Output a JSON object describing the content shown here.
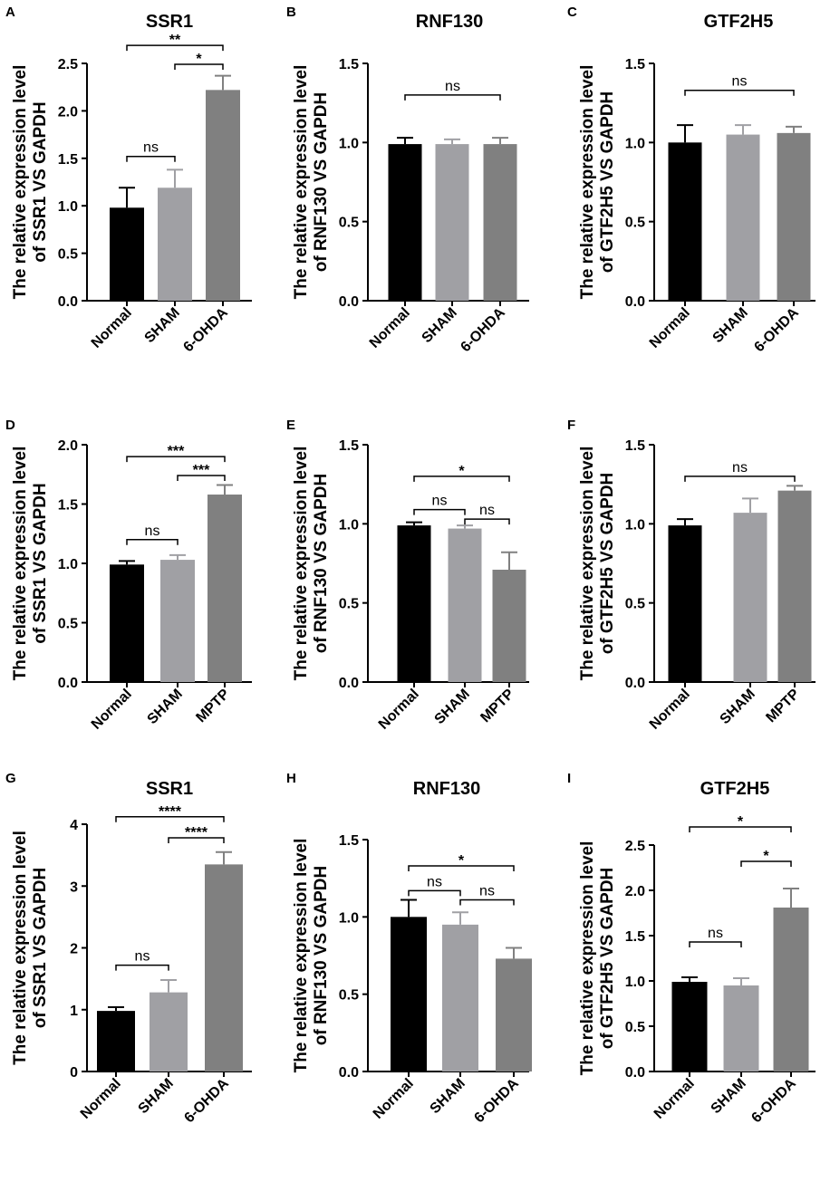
{
  "colors": {
    "normal": "#000000",
    "sham": "#a0a0a4",
    "treated": "#808080",
    "axis": "#000000"
  },
  "chart_data": [
    {
      "panel": "A",
      "type": "bar",
      "title": "SSR1",
      "ylabel": [
        "The relative expression level",
        "of SSR1 VS GAPDH"
      ],
      "categories": [
        "Normal",
        "SHAM",
        "6-OHDA"
      ],
      "values": [
        0.98,
        1.19,
        2.22
      ],
      "errors": [
        0.21,
        0.19,
        0.15
      ],
      "ylim": [
        0,
        2.5
      ],
      "yticks": [
        "0.0",
        "0.5",
        "1.0",
        "1.5",
        "2.0",
        "2.5"
      ],
      "significance": [
        {
          "from": 0,
          "to": 1,
          "label": "ns",
          "y": 1.52
        },
        {
          "from": 1,
          "to": 2,
          "label": "*",
          "y": 2.49
        },
        {
          "from": 0,
          "to": 2,
          "label": "**",
          "y": 2.69
        }
      ]
    },
    {
      "panel": "B",
      "type": "bar",
      "title": "RNF130",
      "ylabel": [
        "The relative expression level",
        "of RNF130 VS GAPDH"
      ],
      "categories": [
        "Normal",
        "SHAM",
        "6-OHDA"
      ],
      "values": [
        0.99,
        0.99,
        0.99
      ],
      "errors": [
        0.04,
        0.03,
        0.04
      ],
      "ylim": [
        0,
        1.5
      ],
      "yticks": [
        "0.0",
        "0.5",
        "1.0",
        "1.5"
      ],
      "significance": [
        {
          "from": 0,
          "to": 2,
          "label": "ns",
          "y": 1.3
        }
      ]
    },
    {
      "panel": "C",
      "type": "bar",
      "title": "GTF2H5",
      "ylabel": [
        "The relative expression level",
        "of GTF2H5 VS GAPDH"
      ],
      "categories": [
        "Normal",
        "SHAM",
        "6-OHDA"
      ],
      "values": [
        1.0,
        1.05,
        1.06
      ],
      "errors": [
        0.11,
        0.06,
        0.04
      ],
      "ylim": [
        0,
        1.5
      ],
      "yticks": [
        "0.0",
        "0.5",
        "1.0",
        "1.5"
      ],
      "significance": [
        {
          "from": 0,
          "to": 2,
          "label": "ns",
          "y": 1.33
        }
      ]
    },
    {
      "panel": "D",
      "type": "bar",
      "title": "",
      "ylabel": [
        "The relative expression level",
        "of SSR1 VS GAPDH"
      ],
      "categories": [
        "Normal",
        "SHAM",
        "MPTP"
      ],
      "values": [
        0.99,
        1.03,
        1.58
      ],
      "errors": [
        0.03,
        0.04,
        0.08
      ],
      "ylim": [
        0,
        2.0
      ],
      "yticks": [
        "0.0",
        "0.5",
        "1.0",
        "1.5",
        "2.0"
      ],
      "significance": [
        {
          "from": 0,
          "to": 1,
          "label": "ns",
          "y": 1.2
        },
        {
          "from": 1,
          "to": 2,
          "label": "***",
          "y": 1.74
        },
        {
          "from": 0,
          "to": 2,
          "label": "***",
          "y": 1.9
        }
      ]
    },
    {
      "panel": "E",
      "type": "bar",
      "title": "",
      "ylabel": [
        "The relative expression level",
        "of RNF130 VS GAPDH"
      ],
      "categories": [
        "Normal",
        "SHAM",
        "MPTP"
      ],
      "values": [
        0.99,
        0.97,
        0.71
      ],
      "errors": [
        0.02,
        0.02,
        0.11
      ],
      "ylim": [
        0,
        1.5
      ],
      "yticks": [
        "0.0",
        "0.5",
        "1.0",
        "1.5"
      ],
      "significance": [
        {
          "from": 0,
          "to": 1,
          "label": "ns",
          "y": 1.09
        },
        {
          "from": 1,
          "to": 2,
          "label": "ns",
          "y": 1.03
        },
        {
          "from": 0,
          "to": 2,
          "label": "*",
          "y": 1.3
        }
      ]
    },
    {
      "panel": "F",
      "type": "bar",
      "title": "",
      "ylabel": [
        "The relative expression level",
        "of GTF2H5 VS GAPDH"
      ],
      "categories": [
        "Normal",
        "SHAM",
        "MPTP"
      ],
      "values": [
        0.99,
        1.07,
        1.21
      ],
      "errors": [
        0.04,
        0.09,
        0.03
      ],
      "ylim": [
        0,
        1.5
      ],
      "yticks": [
        "0.0",
        "0.5",
        "1.0",
        "1.5"
      ],
      "significance": [
        {
          "from": 0,
          "to": 2,
          "label": "ns",
          "y": 1.3
        }
      ]
    },
    {
      "panel": "G",
      "type": "bar",
      "title": "SSR1",
      "ylabel": [
        "The relative expression level",
        "of SSR1 VS GAPDH"
      ],
      "categories": [
        "Normal",
        "SHAM",
        "6-OHDA"
      ],
      "values": [
        0.98,
        1.28,
        3.35
      ],
      "errors": [
        0.06,
        0.2,
        0.2
      ],
      "ylim": [
        0,
        4
      ],
      "yticks": [
        "0",
        "1",
        "2",
        "3",
        "4"
      ],
      "significance": [
        {
          "from": 0,
          "to": 1,
          "label": "ns",
          "y": 1.72
        },
        {
          "from": 1,
          "to": 2,
          "label": "****",
          "y": 3.78
        },
        {
          "from": 0,
          "to": 2,
          "label": "****",
          "y": 4.12
        }
      ]
    },
    {
      "panel": "H",
      "type": "bar",
      "title": "RNF130",
      "ylabel": [
        "The relative expression level",
        "of RNF130 VS GAPDH"
      ],
      "categories": [
        "Normal",
        "SHAM",
        "6-OHDA"
      ],
      "values": [
        1.0,
        0.95,
        0.73
      ],
      "errors": [
        0.11,
        0.08,
        0.07
      ],
      "ylim": [
        0,
        1.5
      ],
      "yticks": [
        "0.0",
        "0.5",
        "1.0",
        "1.5"
      ],
      "significance": [
        {
          "from": 0,
          "to": 1,
          "label": "ns",
          "y": 1.17
        },
        {
          "from": 1,
          "to": 2,
          "label": "ns",
          "y": 1.11
        },
        {
          "from": 0,
          "to": 2,
          "label": "*",
          "y": 1.33
        }
      ]
    },
    {
      "panel": "I",
      "type": "bar",
      "title": "GTF2H5",
      "ylabel": [
        "The relative expression level",
        "of GTF2H5 VS GAPDH"
      ],
      "categories": [
        "Normal",
        "SHAM",
        "6-OHDA"
      ],
      "values": [
        0.99,
        0.95,
        1.81
      ],
      "errors": [
        0.05,
        0.08,
        0.21
      ],
      "ylim": [
        0,
        2.5
      ],
      "yticks": [
        "0.0",
        "0.5",
        "1.0",
        "1.5",
        "2.0",
        "2.5"
      ],
      "significance": [
        {
          "from": 0,
          "to": 1,
          "label": "ns",
          "y": 1.43
        },
        {
          "from": 1,
          "to": 2,
          "label": "*",
          "y": 2.32
        },
        {
          "from": 0,
          "to": 2,
          "label": "*",
          "y": 2.7
        }
      ]
    }
  ]
}
